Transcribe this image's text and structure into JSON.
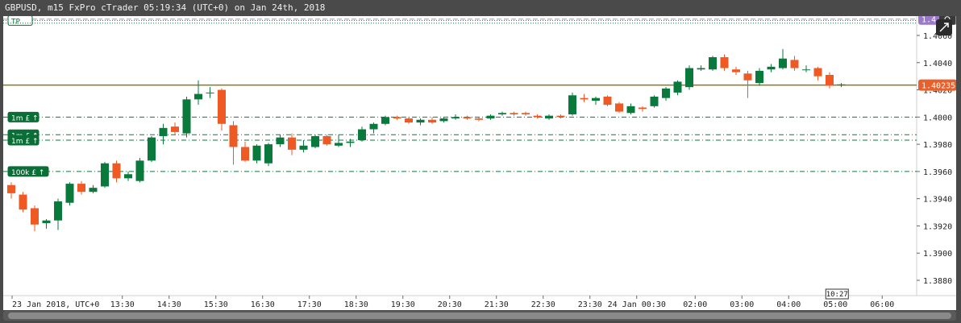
{
  "window": {
    "title": "GBPUSD, m15 FxPro cTrader 05:19:34 (UTC+0) on Jan 24th, 2018"
  },
  "colors": {
    "bull": "#0a7a3c",
    "bear": "#ef5a24",
    "price_line": "#8a7a10",
    "price_tag_bg": "#e8602a",
    "purple_line": "#b58ad6",
    "purple_tag_bg": "#9a7ac6",
    "order_line": "#0a7a3c",
    "grid_text": "#222222"
  },
  "icons": {
    "popout": "external-link-icon",
    "screenshot": "camera-icon"
  },
  "chart_data": {
    "type": "candlestick",
    "title": "",
    "xlabel": "",
    "ylabel": "",
    "ylim": [
      1.3867,
      1.4215
    ],
    "y_ticks": [
      "1.3880",
      "1.3900",
      "1.3920",
      "1.3940",
      "1.3960",
      "1.3980",
      "1.4000",
      "1.4020",
      "1.4040",
      "1.4060"
    ],
    "x_ticks": [
      "23 Jan 2018, UTC+0",
      "13:30",
      "14:30",
      "15:30",
      "16:30",
      "17:30",
      "18:30",
      "19:30",
      "20:30",
      "21:30",
      "22:30",
      "23:30",
      "24 Jan 00:30",
      "02:00",
      "03:00",
      "04:00",
      "05:00",
      "06:00"
    ],
    "top_tick_partial": "1.41",
    "current_price": "1.40235",
    "purple_line": {
      "price": 1.4072,
      "label": "1.4"
    },
    "cursor_time_label": "10:27",
    "candles": [
      {
        "o": 1.395,
        "h": 1.3952,
        "l": 1.394,
        "c": 1.3944
      },
      {
        "o": 1.3943,
        "h": 1.3945,
        "l": 1.393,
        "c": 1.3932
      },
      {
        "o": 1.3933,
        "h": 1.3935,
        "l": 1.3916,
        "c": 1.3921
      },
      {
        "o": 1.3922,
        "h": 1.3925,
        "l": 1.3918,
        "c": 1.3924
      },
      {
        "o": 1.3924,
        "h": 1.394,
        "l": 1.3917,
        "c": 1.3938
      },
      {
        "o": 1.3937,
        "h": 1.3952,
        "l": 1.3935,
        "c": 1.3951
      },
      {
        "o": 1.3951,
        "h": 1.3953,
        "l": 1.3943,
        "c": 1.3945
      },
      {
        "o": 1.3945,
        "h": 1.395,
        "l": 1.3944,
        "c": 1.3948
      },
      {
        "o": 1.3949,
        "h": 1.3967,
        "l": 1.3948,
        "c": 1.3966
      },
      {
        "o": 1.3966,
        "h": 1.3968,
        "l": 1.3952,
        "c": 1.3955
      },
      {
        "o": 1.3955,
        "h": 1.396,
        "l": 1.3953,
        "c": 1.3958
      },
      {
        "o": 1.3953,
        "h": 1.397,
        "l": 1.3952,
        "c": 1.3968
      },
      {
        "o": 1.3968,
        "h": 1.3986,
        "l": 1.3967,
        "c": 1.3985
      },
      {
        "o": 1.3986,
        "h": 1.3995,
        "l": 1.398,
        "c": 1.3992
      },
      {
        "o": 1.3993,
        "h": 1.3996,
        "l": 1.3987,
        "c": 1.3989
      },
      {
        "o": 1.3988,
        "h": 1.4015,
        "l": 1.3985,
        "c": 1.4013
      },
      {
        "o": 1.4013,
        "h": 1.4027,
        "l": 1.4009,
        "c": 1.4017
      },
      {
        "o": 1.4018,
        "h": 1.4022,
        "l": 1.4014,
        "c": 1.4018
      },
      {
        "o": 1.402,
        "h": 1.4021,
        "l": 1.399,
        "c": 1.3995
      },
      {
        "o": 1.3994,
        "h": 1.3997,
        "l": 1.3965,
        "c": 1.3978
      },
      {
        "o": 1.3978,
        "h": 1.3982,
        "l": 1.3967,
        "c": 1.3968
      },
      {
        "o": 1.3968,
        "h": 1.398,
        "l": 1.3966,
        "c": 1.3979
      },
      {
        "o": 1.3966,
        "h": 1.3981,
        "l": 1.3964,
        "c": 1.398
      },
      {
        "o": 1.398,
        "h": 1.3987,
        "l": 1.3978,
        "c": 1.3985
      },
      {
        "o": 1.3985,
        "h": 1.3988,
        "l": 1.3972,
        "c": 1.3976
      },
      {
        "o": 1.3976,
        "h": 1.3983,
        "l": 1.3974,
        "c": 1.3979
      },
      {
        "o": 1.3978,
        "h": 1.3987,
        "l": 1.3977,
        "c": 1.3986
      },
      {
        "o": 1.3986,
        "h": 1.3987,
        "l": 1.3979,
        "c": 1.398
      },
      {
        "o": 1.3979,
        "h": 1.3987,
        "l": 1.3978,
        "c": 1.3981
      },
      {
        "o": 1.3981,
        "h": 1.3984,
        "l": 1.3978,
        "c": 1.3982
      },
      {
        "o": 1.3983,
        "h": 1.3993,
        "l": 1.3982,
        "c": 1.3991
      },
      {
        "o": 1.3991,
        "h": 1.3996,
        "l": 1.3988,
        "c": 1.3995
      },
      {
        "o": 1.3995,
        "h": 1.4001,
        "l": 1.3994,
        "c": 1.4
      },
      {
        "o": 1.4,
        "h": 1.4001,
        "l": 1.3998,
        "c": 1.3999
      },
      {
        "o": 1.3999,
        "h": 1.4,
        "l": 1.3995,
        "c": 1.3996
      },
      {
        "o": 1.3996,
        "h": 1.3999,
        "l": 1.3994,
        "c": 1.3998
      },
      {
        "o": 1.3998,
        "h": 1.4,
        "l": 1.3995,
        "c": 1.3996
      },
      {
        "o": 1.3997,
        "h": 1.4,
        "l": 1.3996,
        "c": 1.3999
      },
      {
        "o": 1.3999,
        "h": 1.4002,
        "l": 1.3998,
        "c": 1.4
      },
      {
        "o": 1.4,
        "h": 1.4001,
        "l": 1.3998,
        "c": 1.3999
      },
      {
        "o": 1.3999,
        "h": 1.4,
        "l": 1.3997,
        "c": 1.3998
      },
      {
        "o": 1.3999,
        "h": 1.4002,
        "l": 1.3998,
        "c": 1.4001
      },
      {
        "o": 1.4002,
        "h": 1.4004,
        "l": 1.4001,
        "c": 1.4003
      },
      {
        "o": 1.4003,
        "h": 1.4004,
        "l": 1.4001,
        "c": 1.4002
      },
      {
        "o": 1.4003,
        "h": 1.4004,
        "l": 1.4001,
        "c": 1.4002
      },
      {
        "o": 1.4001,
        "h": 1.4002,
        "l": 1.3999,
        "c": 1.4
      },
      {
        "o": 1.3999,
        "h": 1.4002,
        "l": 1.3998,
        "c": 1.4001
      },
      {
        "o": 1.4001,
        "h": 1.4002,
        "l": 1.3999,
        "c": 1.4
      },
      {
        "o": 1.4002,
        "h": 1.4018,
        "l": 1.4001,
        "c": 1.4016
      },
      {
        "o": 1.4014,
        "h": 1.4017,
        "l": 1.4011,
        "c": 1.4013
      },
      {
        "o": 1.4012,
        "h": 1.4015,
        "l": 1.4009,
        "c": 1.4014
      },
      {
        "o": 1.4015,
        "h": 1.4016,
        "l": 1.4008,
        "c": 1.4009
      },
      {
        "o": 1.401,
        "h": 1.4011,
        "l": 1.4003,
        "c": 1.4004
      },
      {
        "o": 1.4003,
        "h": 1.401,
        "l": 1.4002,
        "c": 1.4008
      },
      {
        "o": 1.4007,
        "h": 1.4008,
        "l": 1.4004,
        "c": 1.4006
      },
      {
        "o": 1.4008,
        "h": 1.4016,
        "l": 1.4007,
        "c": 1.4015
      },
      {
        "o": 1.4014,
        "h": 1.4022,
        "l": 1.4012,
        "c": 1.4021
      },
      {
        "o": 1.4018,
        "h": 1.4027,
        "l": 1.4016,
        "c": 1.4026
      },
      {
        "o": 1.4022,
        "h": 1.4038,
        "l": 1.402,
        "c": 1.4036
      },
      {
        "o": 1.4035,
        "h": 1.4038,
        "l": 1.4034,
        "c": 1.4036
      },
      {
        "o": 1.4035,
        "h": 1.4045,
        "l": 1.4034,
        "c": 1.4044
      },
      {
        "o": 1.4044,
        "h": 1.4046,
        "l": 1.4034,
        "c": 1.4036
      },
      {
        "o": 1.4035,
        "h": 1.4037,
        "l": 1.4031,
        "c": 1.4033
      },
      {
        "o": 1.4032,
        "h": 1.4034,
        "l": 1.4014,
        "c": 1.4027
      },
      {
        "o": 1.4025,
        "h": 1.4036,
        "l": 1.4023,
        "c": 1.4034
      },
      {
        "o": 1.4035,
        "h": 1.4039,
        "l": 1.4033,
        "c": 1.4037
      },
      {
        "o": 1.4036,
        "h": 1.405,
        "l": 1.4035,
        "c": 1.4043
      },
      {
        "o": 1.4042,
        "h": 1.4045,
        "l": 1.4034,
        "c": 1.4036
      },
      {
        "o": 1.4035,
        "h": 1.4038,
        "l": 1.4033,
        "c": 1.4035
      },
      {
        "o": 1.4036,
        "h": 1.4037,
        "l": 1.4027,
        "c": 1.403
      },
      {
        "o": 1.4031,
        "h": 1.4033,
        "l": 1.4021,
        "c": 1.4023
      },
      {
        "o": 1.4024,
        "h": 1.4025,
        "l": 1.4022,
        "c": 1.4024
      }
    ],
    "candle_times": "one candle per 15 minutes",
    "order_lines": [
      {
        "price": 1.4071,
        "label": "TP",
        "style": "dotted"
      },
      {
        "price": 1.4069,
        "label": "",
        "style": "dotted"
      },
      {
        "price": 1.4,
        "label": "1m £",
        "style": "dashdot"
      },
      {
        "price": 1.3987,
        "label": "1m £",
        "style": "dashdot"
      },
      {
        "price": 1.3983,
        "label": "1m £",
        "style": "dashdot"
      },
      {
        "price": 1.396,
        "label": "100k £",
        "style": "dashdot"
      }
    ]
  }
}
